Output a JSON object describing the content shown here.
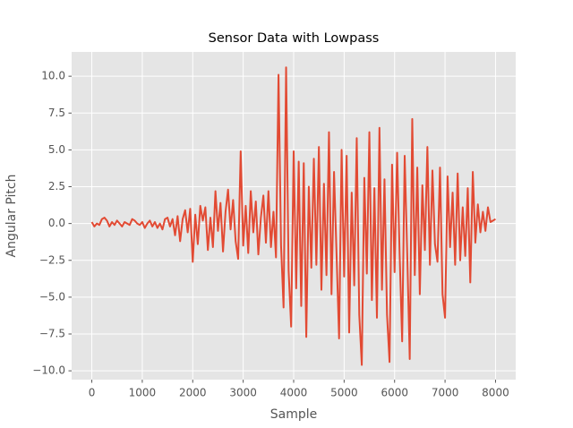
{
  "chart_data": {
    "type": "line",
    "title": "Sensor Data with Lowpass",
    "x_label": "Sample",
    "y_label": "Angular Pitch",
    "color": "#E24A33",
    "grid": true,
    "xlim": [
      -400,
      8400
    ],
    "ylim": [
      -10.6,
      11.65
    ],
    "xticks": [
      0,
      1000,
      2000,
      3000,
      4000,
      5000,
      6000,
      7000,
      8000
    ],
    "yticks": [
      {
        "value": -10,
        "label": "−10.0"
      },
      {
        "value": -7.5,
        "label": "−7.5"
      },
      {
        "value": -5,
        "label": "−5.0"
      },
      {
        "value": -2.5,
        "label": "−2.5"
      },
      {
        "value": 0,
        "label": "0.0"
      },
      {
        "value": 2.5,
        "label": "2.5"
      },
      {
        "value": 5,
        "label": "5.0"
      },
      {
        "value": 7.5,
        "label": "7.5"
      },
      {
        "value": 10,
        "label": "10.0"
      }
    ],
    "x": [
      0,
      50,
      100,
      150,
      200,
      250,
      300,
      350,
      400,
      450,
      500,
      550,
      600,
      650,
      700,
      750,
      800,
      850,
      900,
      950,
      1000,
      1050,
      1100,
      1150,
      1200,
      1250,
      1300,
      1350,
      1400,
      1450,
      1500,
      1550,
      1600,
      1650,
      1700,
      1750,
      1800,
      1850,
      1900,
      1950,
      2000,
      2050,
      2100,
      2150,
      2200,
      2250,
      2300,
      2350,
      2400,
      2450,
      2500,
      2550,
      2600,
      2650,
      2700,
      2750,
      2800,
      2850,
      2900,
      2950,
      3000,
      3050,
      3100,
      3150,
      3200,
      3250,
      3300,
      3350,
      3400,
      3450,
      3500,
      3550,
      3600,
      3650,
      3700,
      3750,
      3800,
      3850,
      3900,
      3950,
      4000,
      4050,
      4100,
      4150,
      4200,
      4250,
      4300,
      4350,
      4400,
      4450,
      4500,
      4550,
      4600,
      4650,
      4700,
      4750,
      4800,
      4850,
      4900,
      4950,
      5000,
      5050,
      5100,
      5150,
      5200,
      5250,
      5300,
      5350,
      5400,
      5450,
      5500,
      5550,
      5600,
      5650,
      5700,
      5750,
      5800,
      5850,
      5900,
      5950,
      6000,
      6050,
      6100,
      6150,
      6200,
      6250,
      6300,
      6350,
      6400,
      6450,
      6500,
      6550,
      6600,
      6650,
      6700,
      6750,
      6800,
      6850,
      6900,
      6950,
      7000,
      7050,
      7100,
      7150,
      7200,
      7250,
      7300,
      7350,
      7400,
      7450,
      7500,
      7550,
      7600,
      7650,
      7700,
      7750,
      7800,
      7850,
      7900,
      7950,
      8000
    ],
    "values": [
      0.1,
      -0.2,
      0,
      -0.1,
      0.3,
      0.4,
      0.2,
      -0.2,
      0.1,
      -0.1,
      0.2,
      0,
      -0.2,
      0.1,
      0,
      -0.1,
      0.3,
      0.2,
      0,
      -0.1,
      0.1,
      -0.3,
      0,
      0.2,
      -0.2,
      0.1,
      -0.3,
      0,
      -0.4,
      0.3,
      0.4,
      -0.2,
      0.3,
      -0.8,
      0.5,
      -1.2,
      0.3,
      0.9,
      -0.6,
      1,
      -2.6,
      0.6,
      -1.4,
      1.2,
      0.2,
      1.1,
      -1.8,
      0.4,
      -1.6,
      2.2,
      -0.5,
      1.4,
      -1.9,
      0.8,
      2.3,
      -0.4,
      1.6,
      -1.2,
      -2.4,
      4.9,
      -1.5,
      1.2,
      -2,
      2.2,
      -0.6,
      1.5,
      -2.1,
      0.4,
      1.9,
      -1.3,
      2.2,
      -1.6,
      0.8,
      -2.3,
      10.1,
      -1.5,
      -5.7,
      10.6,
      -3.2,
      -7,
      4.9,
      -4.4,
      4.2,
      -5.6,
      4.1,
      -7.7,
      2.5,
      -3,
      4.4,
      -2.8,
      5.2,
      -4.5,
      2.7,
      -3.5,
      6.2,
      -4.8,
      3.5,
      -2.1,
      -7.8,
      5,
      -3.6,
      4.6,
      -7.4,
      2.1,
      -4.2,
      5.8,
      -6.2,
      -9.6,
      3.1,
      -3.4,
      6.2,
      -5.2,
      2.4,
      -6.4,
      6.5,
      -4.5,
      3,
      -6.2,
      -9.4,
      4,
      -3.3,
      4.8,
      -2.1,
      -8,
      4.6,
      -2,
      -9.2,
      7.1,
      -3.5,
      3.8,
      -4.8,
      2.6,
      -1.8,
      5.2,
      -2.8,
      3.6,
      -1.4,
      -2.6,
      3.8,
      -4.8,
      -6.4,
      3.2,
      -1.6,
      2.1,
      -2.8,
      3.4,
      -2.5,
      1.1,
      -2.2,
      2.4,
      -4,
      3.5,
      -1.3,
      1.3,
      -0.6,
      0.8,
      -0.5,
      1.1,
      0.1,
      0.2,
      0.3
    ]
  }
}
